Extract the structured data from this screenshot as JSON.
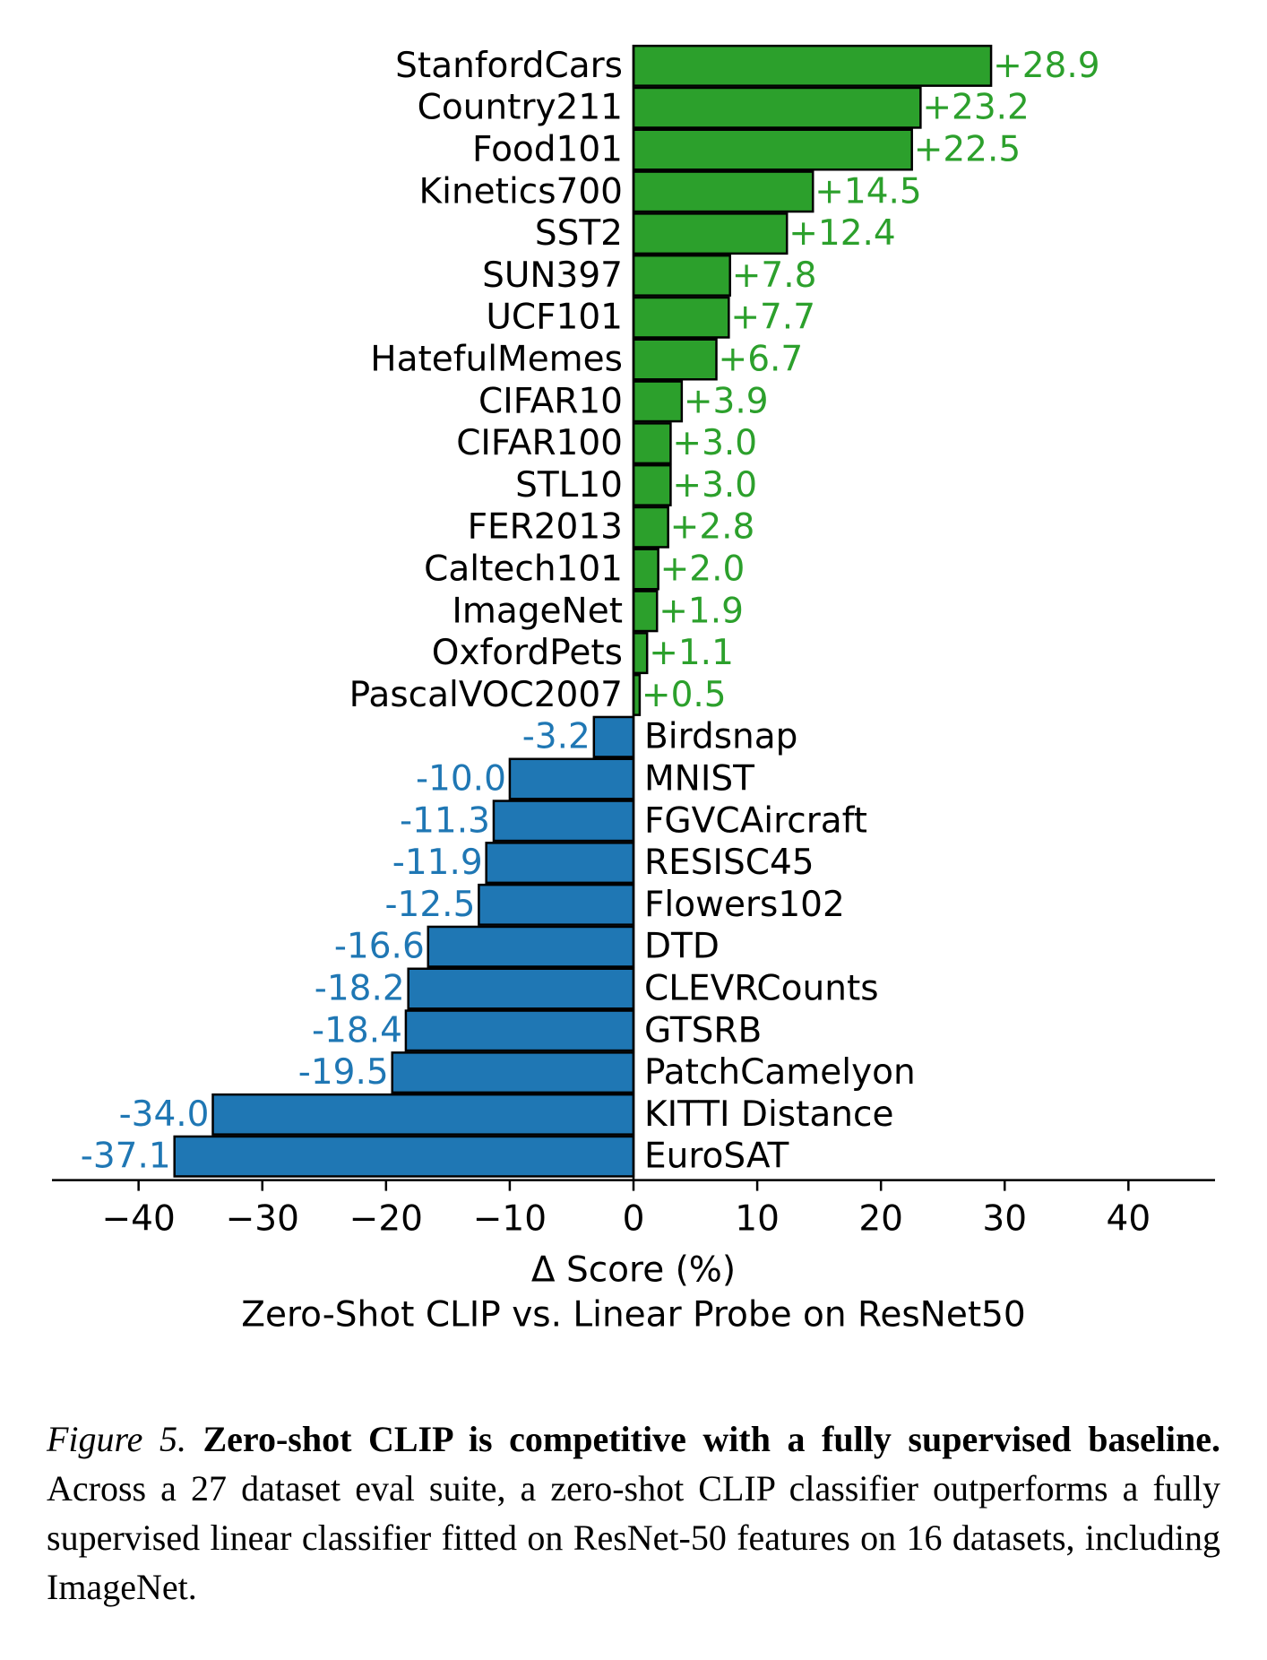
{
  "chart_data": {
    "type": "bar",
    "orientation": "horizontal",
    "categories": [
      "StanfordCars",
      "Country211",
      "Food101",
      "Kinetics700",
      "SST2",
      "SUN397",
      "UCF101",
      "HatefulMemes",
      "CIFAR10",
      "CIFAR100",
      "STL10",
      "FER2013",
      "Caltech101",
      "ImageNet",
      "OxfordPets",
      "PascalVOC2007",
      "Birdsnap",
      "MNIST",
      "FGVCAircraft",
      "RESISC45",
      "Flowers102",
      "DTD",
      "CLEVRCounts",
      "GTSRB",
      "PatchCamelyon",
      "KITTI Distance",
      "EuroSAT"
    ],
    "values": [
      28.9,
      23.2,
      22.5,
      14.5,
      12.4,
      7.8,
      7.7,
      6.7,
      3.9,
      3.0,
      3.0,
      2.8,
      2.0,
      1.9,
      1.1,
      0.5,
      -3.2,
      -10.0,
      -11.3,
      -11.9,
      -12.5,
      -16.6,
      -18.2,
      -18.4,
      -19.5,
      -34.0,
      -37.1
    ],
    "value_labels": [
      "+28.9",
      "+23.2",
      "+22.5",
      "+14.5",
      "+12.4",
      "+7.8",
      "+7.7",
      "+6.7",
      "+3.9",
      "+3.0",
      "+3.0",
      "+2.8",
      "+2.0",
      "+1.9",
      "+1.1",
      "+0.5",
      "-3.2",
      "-10.0",
      "-11.3",
      "-11.9",
      "-12.5",
      "-16.6",
      "-18.2",
      "-18.4",
      "-19.5",
      "-34.0",
      "-37.1"
    ],
    "xlabel": "Δ Score (%)",
    "subtitle": "Zero-Shot CLIP vs. Linear Probe on ResNet50",
    "xlim": [
      -47,
      47
    ],
    "xticks": [
      -40,
      -30,
      -20,
      -10,
      0,
      10,
      20,
      30,
      40
    ],
    "xtick_labels": [
      "−40",
      "−30",
      "−20",
      "−10",
      "0",
      "10",
      "20",
      "30",
      "40"
    ],
    "grid": false,
    "colors": {
      "positive": "#2ca02c",
      "negative": "#1f77b4",
      "edge": "#000000"
    }
  },
  "caption": {
    "figure_label": "Figure 5.",
    "bold_text": "Zero-shot CLIP is competitive with a fully supervised baseline.",
    "body_text": "Across a 27 dataset eval suite, a zero-shot CLIP classifier outperforms a fully supervised linear classifier fitted on ResNet-50 features on 16 datasets, including ImageNet."
  }
}
